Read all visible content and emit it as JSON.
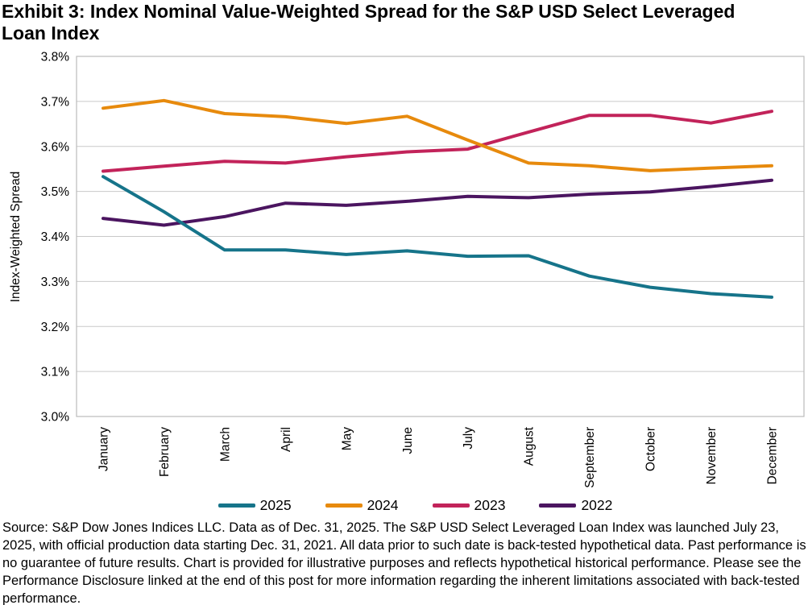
{
  "title": "Exhibit 3: Index Nominal Value-Weighted Spread for the S&P USD Select Leveraged Loan Index",
  "footer": {
    "note": "Source: S&P Dow Jones Indices LLC. Data as of Dec. 31, 2025. The S&P USD Select Leveraged Loan Index was launched July 23, 2025, with official production data starting Dec. 31, 2021. All data prior to such date is back-tested hypothetical data. Past performance is no guarantee of future results. Chart is provided for illustrative purposes and reflects hypothetical historical performance. Please see the Performance Disclosure linked at the end of this post for more information regarding the inherent limitations associated with back-tested performance."
  },
  "colors": {
    "gridline": "#C9C9C9",
    "plot_border": "#BBBBBB",
    "text": "#000000"
  },
  "chart_data": {
    "type": "line",
    "title": "Exhibit 3: Index Nominal Value-Weighted Spread for the S&P USD Select Leveraged Loan Index",
    "xlabel": "",
    "ylabel": "Index-Weighted Spread",
    "x_categories": [
      "January",
      "February",
      "March",
      "April",
      "May",
      "June",
      "July",
      "August",
      "September",
      "October",
      "November",
      "December"
    ],
    "ylim": [
      3.0,
      3.8
    ],
    "ytick_step": 0.1,
    "ytick_suffix": "%",
    "grid": "horizontal",
    "legend_position": "bottom",
    "series": [
      {
        "name": "2025",
        "color": "#16748A",
        "values": [
          3.533,
          3.455,
          3.37,
          3.37,
          3.36,
          3.368,
          3.356,
          3.357,
          3.312,
          3.287,
          3.273,
          3.265
        ]
      },
      {
        "name": "2024",
        "color": "#E78A0D",
        "values": [
          3.685,
          3.702,
          3.673,
          3.666,
          3.651,
          3.667,
          3.614,
          3.563,
          3.557,
          3.546,
          3.552,
          3.557
        ]
      },
      {
        "name": "2023",
        "color": "#C2235A",
        "values": [
          3.545,
          3.556,
          3.567,
          3.563,
          3.577,
          3.588,
          3.594,
          3.632,
          3.669,
          3.669,
          3.652,
          3.678
        ]
      },
      {
        "name": "2022",
        "color": "#4B1560",
        "values": [
          3.44,
          3.425,
          3.444,
          3.474,
          3.469,
          3.478,
          3.489,
          3.486,
          3.494,
          3.499,
          3.511,
          3.525
        ]
      }
    ]
  }
}
